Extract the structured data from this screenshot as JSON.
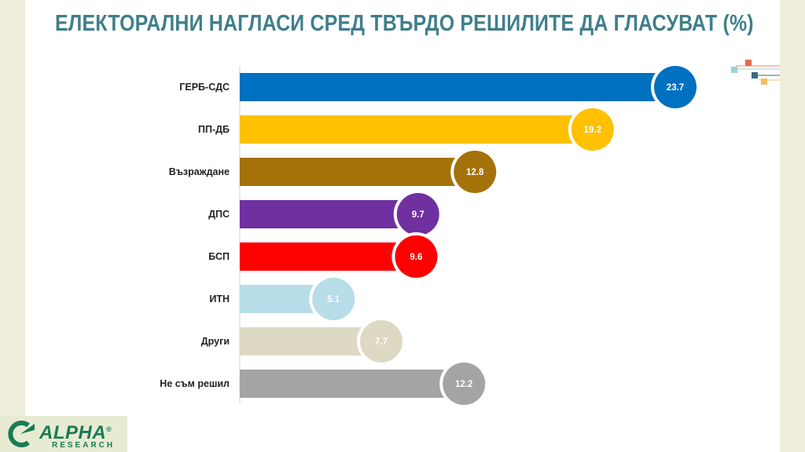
{
  "title": "ЕЛЕКТОРАЛНИ НАГЛАСИ СРЕД ТВЪРДО РЕШИЛИТЕ ДА ГЛАСУВАТ (%)",
  "logo": {
    "name": "ALPHA",
    "sub": "RESEARCH",
    "registered": "®"
  },
  "chart_data": {
    "type": "bar",
    "orientation": "horizontal",
    "title": "ЕЛЕКТОРАЛНИ НАГЛАСИ СРЕД ТВЪРДО РЕШИЛИТЕ ДА ГЛАСУВАТ (%)",
    "xlabel": "",
    "ylabel": "",
    "xlim": [
      0,
      25
    ],
    "grid": false,
    "legend": "none",
    "categories": [
      "ГЕРБ-СДС",
      "ПП-ДБ",
      "Възраждане",
      "ДПС",
      "БСП",
      "ИТН",
      "Други",
      "Не съм решил"
    ],
    "values": [
      23.7,
      19.2,
      12.8,
      9.7,
      9.6,
      5.1,
      7.7,
      12.2
    ],
    "value_labels": [
      "23.7",
      "19.2",
      "12.8",
      "9.7",
      "9.6",
      "5.1",
      "7.7",
      "12.2"
    ],
    "colors": [
      "#0070c0",
      "#ffc000",
      "#a5720a",
      "#7030a0",
      "#ff0000",
      "#b7dde8",
      "#ddd9c3",
      "#a6a3a3"
    ]
  }
}
